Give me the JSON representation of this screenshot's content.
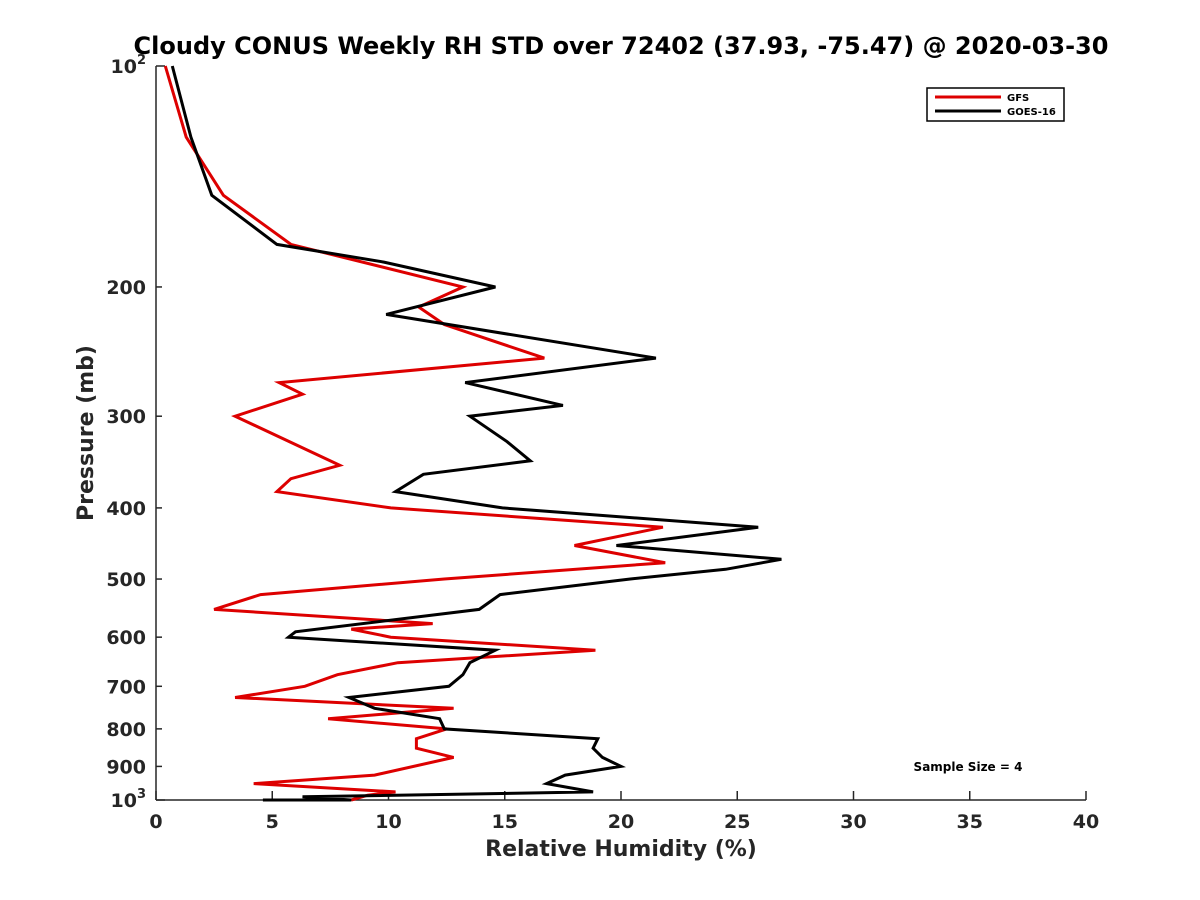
{
  "chart_data": {
    "type": "line",
    "title": "Cloudy CONUS Weekly RH STD over 72402 (37.93, -75.47) @ 2020-03-30",
    "xlabel": "Relative Humidity (%)",
    "ylabel": "Pressure (mb)",
    "xlim": [
      0,
      40
    ],
    "ylim": [
      100,
      1000
    ],
    "y_scale": "log",
    "y_direction": "reversed",
    "x_ticks": [
      "0",
      "5",
      "10",
      "15",
      "20",
      "25",
      "30",
      "35",
      "40"
    ],
    "y_ticks": [
      {
        "value": 100,
        "label": "10",
        "exp": "2"
      },
      {
        "value": 200,
        "label": "200"
      },
      {
        "value": 300,
        "label": "300"
      },
      {
        "value": 400,
        "label": "400"
      },
      {
        "value": 500,
        "label": "500"
      },
      {
        "value": 600,
        "label": "600"
      },
      {
        "value": 700,
        "label": "700"
      },
      {
        "value": 800,
        "label": "800"
      },
      {
        "value": 900,
        "label": "900"
      },
      {
        "value": 1000,
        "label": "10",
        "exp": "3"
      }
    ],
    "grid": false,
    "legend_position": "top-right",
    "annotation": "Sample Size = 4",
    "series": [
      {
        "name": "GFS",
        "color": "#dd0000",
        "points": [
          [
            0.4,
            100
          ],
          [
            1.3,
            125
          ],
          [
            2.9,
            150
          ],
          [
            5.8,
            175
          ],
          [
            13.2,
            200
          ],
          [
            11.3,
            213
          ],
          [
            12.4,
            225
          ],
          [
            16.7,
            250
          ],
          [
            5.3,
            270
          ],
          [
            6.3,
            280
          ],
          [
            3.4,
            300
          ],
          [
            7.9,
            350
          ],
          [
            5.8,
            365
          ],
          [
            5.2,
            380
          ],
          [
            10.1,
            400
          ],
          [
            21.8,
            425
          ],
          [
            18.0,
            450
          ],
          [
            21.9,
            475
          ],
          [
            12.4,
            500
          ],
          [
            4.5,
            525
          ],
          [
            2.5,
            550
          ],
          [
            11.9,
            575
          ],
          [
            8.4,
            585
          ],
          [
            10.1,
            600
          ],
          [
            18.9,
            625
          ],
          [
            10.4,
            650
          ],
          [
            7.8,
            675
          ],
          [
            6.4,
            700
          ],
          [
            3.4,
            725
          ],
          [
            12.8,
            750
          ],
          [
            7.4,
            775
          ],
          [
            12.5,
            800
          ],
          [
            11.2,
            825
          ],
          [
            11.2,
            850
          ],
          [
            12.8,
            875
          ],
          [
            9.4,
            925
          ],
          [
            4.2,
            950
          ],
          [
            10.3,
            975
          ],
          [
            9.1,
            985
          ],
          [
            8.4,
            1000
          ]
        ]
      },
      {
        "name": "GOES-16",
        "color": "#000000",
        "points": [
          [
            0.7,
            100
          ],
          [
            1.5,
            125
          ],
          [
            2.4,
            150
          ],
          [
            5.2,
            175
          ],
          [
            9.8,
            185
          ],
          [
            14.6,
            200
          ],
          [
            9.9,
            218
          ],
          [
            21.5,
            250
          ],
          [
            13.3,
            270
          ],
          [
            17.5,
            290
          ],
          [
            13.5,
            300
          ],
          [
            15.1,
            325
          ],
          [
            16.1,
            345
          ],
          [
            11.5,
            360
          ],
          [
            10.3,
            380
          ],
          [
            14.9,
            400
          ],
          [
            25.9,
            425
          ],
          [
            19.8,
            450
          ],
          [
            26.9,
            470
          ],
          [
            24.5,
            485
          ],
          [
            20.4,
            500
          ],
          [
            14.8,
            525
          ],
          [
            13.9,
            550
          ],
          [
            6.0,
            590
          ],
          [
            5.7,
            600
          ],
          [
            14.6,
            625
          ],
          [
            13.5,
            650
          ],
          [
            13.2,
            675
          ],
          [
            12.6,
            700
          ],
          [
            8.3,
            725
          ],
          [
            9.4,
            750
          ],
          [
            12.2,
            775
          ],
          [
            12.4,
            800
          ],
          [
            19.0,
            825
          ],
          [
            18.8,
            850
          ],
          [
            19.2,
            875
          ],
          [
            20.0,
            900
          ],
          [
            17.6,
            925
          ],
          [
            16.8,
            950
          ],
          [
            18.8,
            975
          ],
          [
            6.3,
            990
          ],
          [
            8.4,
            1000
          ],
          [
            4.6,
            1000
          ]
        ]
      }
    ]
  }
}
